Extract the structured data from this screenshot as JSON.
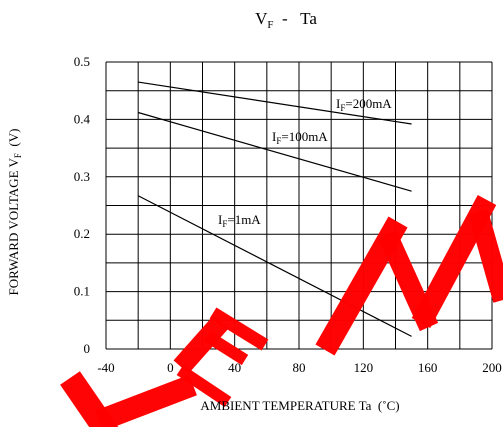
{
  "watermark": {
    "text": "LEM",
    "color": "#ff0000"
  },
  "chart_data": {
    "type": "line",
    "title": {
      "main": "V",
      "sub": "F",
      "rest": "  -   Ta"
    },
    "xlabel": "AMBIENT TEMPERATURE Ta  (˚C)",
    "ylabel": {
      "main": "FORWARD VOLTAGE V",
      "sub": "F",
      "rest": "  (V)"
    },
    "xlim": [
      -40,
      200
    ],
    "ylim": [
      0,
      0.5
    ],
    "xticks": [
      -40,
      0,
      40,
      80,
      120,
      160,
      200
    ],
    "xtick_labels": [
      "-40",
      "0",
      "40",
      "80",
      "120",
      "160",
      "200"
    ],
    "yticks": [
      0,
      0.1,
      0.2,
      0.3,
      0.4,
      0.5
    ],
    "ytick_labels": [
      "0",
      "0.1",
      "0.2",
      "0.3",
      "0.4",
      "0.5"
    ],
    "grid": true,
    "grid_step": {
      "x": 20,
      "y": 0.05
    },
    "line_color": "#000000",
    "series": [
      {
        "label": {
          "main": "I",
          "sub": "F",
          "rest": "=200mA"
        },
        "x": [
          -20,
          150
        ],
        "y": [
          0.465,
          0.392
        ]
      },
      {
        "label": {
          "main": "I",
          "sub": "F",
          "rest": "=100mA"
        },
        "x": [
          -20,
          150
        ],
        "y": [
          0.412,
          0.275
        ]
      },
      {
        "label": {
          "main": "I",
          "sub": "F",
          "rest": "=1mA"
        },
        "x": [
          -20,
          150
        ],
        "y": [
          0.267,
          0.022
        ]
      }
    ]
  }
}
